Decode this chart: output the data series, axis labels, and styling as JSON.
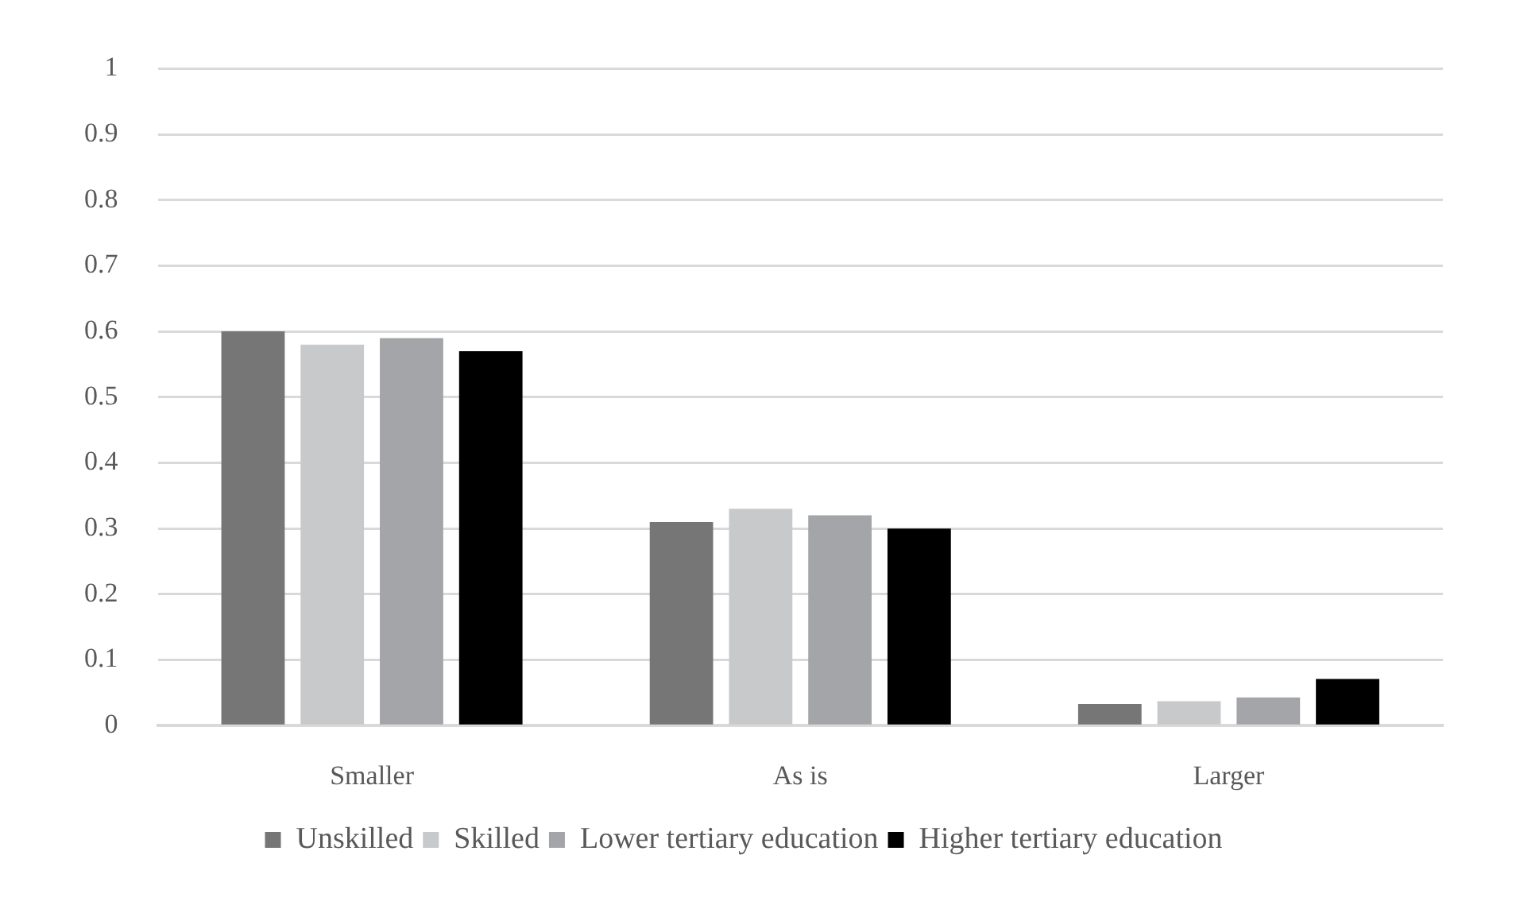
{
  "chart_data": {
    "type": "bar",
    "categories": [
      "Smaller",
      "As is",
      "Larger"
    ],
    "series": [
      {
        "name": "Unskilled",
        "color": "#767676",
        "values": [
          0.6,
          0.31,
          0.033
        ]
      },
      {
        "name": "Skilled",
        "color": "#c8c9cb",
        "values": [
          0.58,
          0.33,
          0.037
        ]
      },
      {
        "name": "Lower tertiary education",
        "color": "#a4a5a8",
        "values": [
          0.59,
          0.32,
          0.043
        ]
      },
      {
        "name": "Higher tertiary education",
        "color": "#000000",
        "values": [
          0.57,
          0.3,
          0.071
        ]
      }
    ],
    "ylim": [
      0,
      1
    ],
    "yticks": [
      0,
      0.1,
      0.2,
      0.3,
      0.4,
      0.5,
      0.6,
      0.7,
      0.8,
      0.9,
      1
    ],
    "grid": "y",
    "legend": "bottom"
  }
}
